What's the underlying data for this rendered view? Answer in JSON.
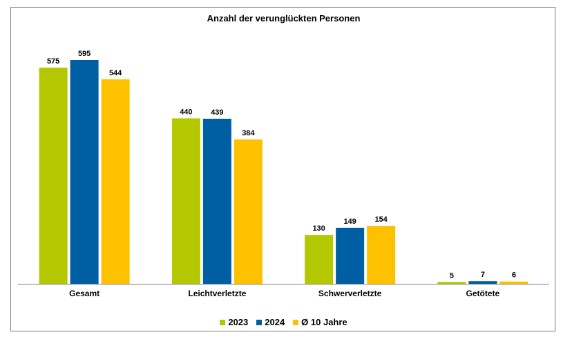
{
  "chart_data": {
    "type": "bar",
    "title": "Anzahl der verunglückten Personen",
    "xlabel": "",
    "ylabel": "",
    "ylim": [
      0,
      720
    ],
    "grid": false,
    "legend_position": "bottom",
    "categories": [
      "Gesamt",
      "Leichtverletzte",
      "Schwerverletzte",
      "Getötete"
    ],
    "series": [
      {
        "name": "2023",
        "color": "#b3c800",
        "values": [
          575,
          440,
          130,
          5
        ]
      },
      {
        "name": "2024",
        "color": "#005fa3",
        "values": [
          595,
          439,
          149,
          7
        ]
      },
      {
        "name": "Ø 10 Jahre",
        "color": "#ffc000",
        "values": [
          544,
          384,
          154,
          6
        ]
      }
    ]
  }
}
